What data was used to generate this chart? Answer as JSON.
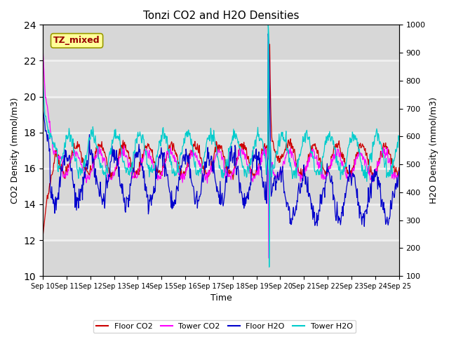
{
  "title": "Tonzi CO2 and H2O Densities",
  "xlabel": "Time",
  "ylabel_left": "CO2 Density (mmol/m3)",
  "ylabel_right": "H2O Density (mmol/m3)",
  "ylim_left": [
    10,
    24
  ],
  "ylim_right": [
    100,
    1000
  ],
  "yticks_left": [
    10,
    12,
    14,
    16,
    18,
    20,
    22,
    24
  ],
  "yticks_right": [
    100,
    200,
    300,
    400,
    500,
    600,
    700,
    800,
    900,
    1000
  ],
  "xtick_labels": [
    "Sep 10",
    "Sep 11",
    "Sep 12",
    "Sep 13",
    "Sep 14",
    "Sep 15",
    "Sep 16",
    "Sep 17",
    "Sep 18",
    "Sep 19",
    "Sep 20",
    "Sep 21",
    "Sep 22",
    "Sep 23",
    "Sep 24",
    "Sep 25"
  ],
  "annotation_text": "TZ_mixed",
  "annotation_fg": "#990000",
  "annotation_bg": "#ffff99",
  "annotation_edge": "#999900",
  "colors": {
    "floor_co2": "#cc0000",
    "tower_co2": "#ff00ff",
    "floor_h2o": "#0000cc",
    "tower_h2o": "#00cccc"
  },
  "legend_labels": [
    "Floor CO2",
    "Tower CO2",
    "Floor H2O",
    "Tower H2O"
  ],
  "plot_bg": "#e0e0e0",
  "grid_color": "#f0f0f0",
  "n_days": 15,
  "pts_per_day": 48
}
